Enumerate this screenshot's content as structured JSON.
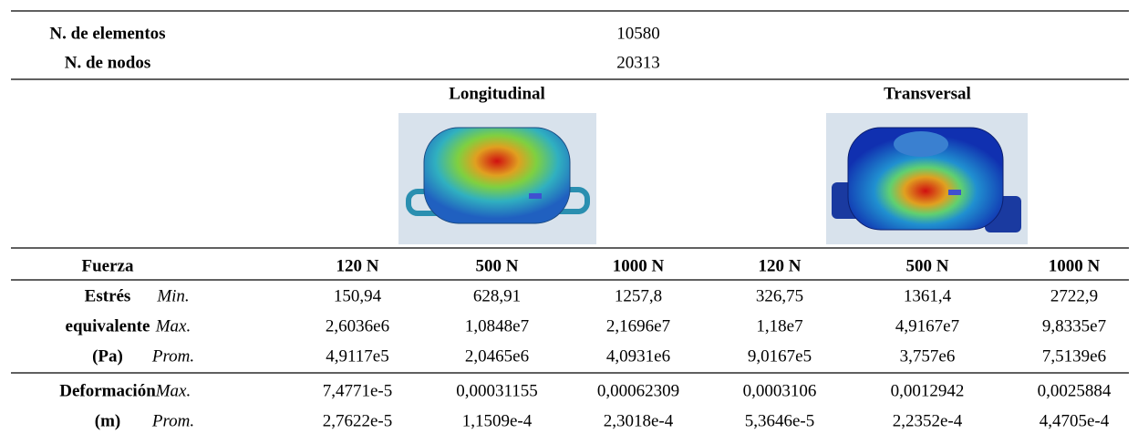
{
  "table": {
    "meta": [
      {
        "label": "N. de elementos",
        "value": "10580"
      },
      {
        "label": "N. de nodos",
        "value": "20313"
      }
    ],
    "groups": [
      "Longitudinal",
      "Transversal"
    ],
    "header": {
      "label": "Fuerza",
      "forces": [
        "120 N",
        "500 N",
        "1000 N",
        "120 N",
        "500 N",
        "1000 N"
      ]
    },
    "sections": [
      {
        "label": [
          "Estrés",
          "equivalente",
          "(Pa)"
        ],
        "rows": [
          {
            "stat": "Min.",
            "values": [
              "150,94",
              "628,91",
              "1257,8",
              "326,75",
              "1361,4",
              "2722,9"
            ]
          },
          {
            "stat": "Max.",
            "values": [
              "2,6036e6",
              "1,0848e7",
              "2,1696e7",
              "1,18e7",
              "4,9167e7",
              "9,8335e7"
            ]
          },
          {
            "stat": "Prom.",
            "values": [
              "4,9117e5",
              "2,0465e6",
              "4,0931e6",
              "9,0167e5",
              "3,757e6",
              "7,5139e6"
            ]
          }
        ]
      },
      {
        "label": [
          "Deformación",
          "(m)"
        ],
        "rows": [
          {
            "stat": "Max.",
            "values": [
              "7,4771e-5",
              "0,00031155",
              "0,00062309",
              "0,0003106",
              "0,0012942",
              "0,0025884"
            ]
          },
          {
            "stat": "Prom.",
            "values": [
              "2,7622e-5",
              "1,1509e-4",
              "2,3018e-4",
              "5,3646e-5",
              "2,2352e-4",
              "4,4705e-4"
            ]
          }
        ]
      }
    ]
  }
}
